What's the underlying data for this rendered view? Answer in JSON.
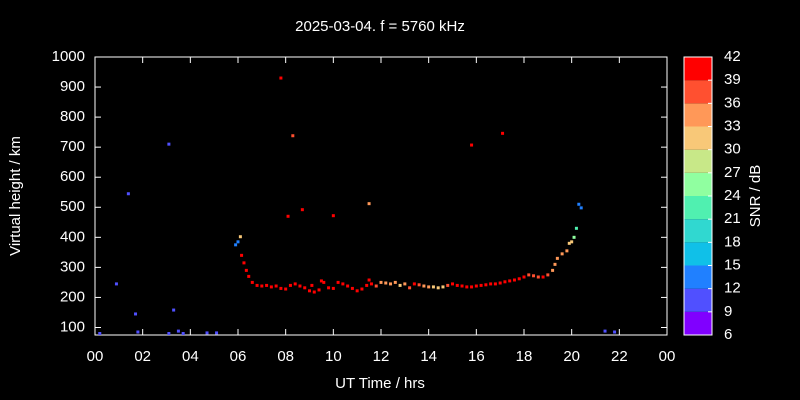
{
  "chart_data": {
    "type": "scatter",
    "title": "2025-03-04. f = 5760 kHz",
    "xlabel": "UT Time / hrs",
    "ylabel": "Virtual height / km",
    "clabel": "SNR / dB",
    "xlim": [
      0,
      24
    ],
    "xticks": [
      {
        "value": 0,
        "label": "00"
      },
      {
        "value": 2,
        "label": "02"
      },
      {
        "value": 4,
        "label": "04"
      },
      {
        "value": 6,
        "label": "06"
      },
      {
        "value": 8,
        "label": "08"
      },
      10,
      12,
      14,
      16,
      18,
      20,
      22,
      {
        "value": 24,
        "label": "00"
      }
    ],
    "ylim": [
      75,
      1000
    ],
    "yticks": [
      100,
      200,
      300,
      400,
      500,
      600,
      700,
      800,
      900,
      1000
    ],
    "clim": [
      6,
      42
    ],
    "cticks": [
      6,
      9,
      12,
      15,
      18,
      21,
      24,
      27,
      30,
      33,
      36,
      39,
      42
    ],
    "colors": [
      "#8000ff",
      "#5050ff",
      "#2080ff",
      "#10c0e8",
      "#30d8d0",
      "#50f0b0",
      "#90ffa0",
      "#c8e888",
      "#f8c878",
      "#ff9858",
      "#ff5030",
      "#ff0000"
    ],
    "x": [
      0.2,
      0.9,
      1.4,
      1.7,
      1.8,
      3.1,
      3.1,
      3.3,
      3.5,
      3.7,
      4.7,
      5.1,
      21.4,
      21.8,
      7.8,
      8.1,
      8.3,
      8.7,
      10.0,
      11.5,
      15.8,
      17.1,
      5.9,
      6.0,
      6.1,
      6.15,
      6.25,
      6.35,
      6.45,
      6.6,
      6.8,
      7.0,
      7.2,
      7.4,
      7.6,
      7.8,
      8.0,
      8.2,
      8.4,
      8.6,
      8.8,
      9.0,
      9.1,
      9.2,
      9.4,
      9.5,
      9.6,
      9.8,
      10.0,
      10.2,
      10.4,
      10.6,
      10.8,
      11.0,
      11.2,
      11.4,
      11.5,
      11.6,
      11.8,
      12.0,
      12.2,
      12.4,
      12.6,
      12.8,
      13.0,
      13.2,
      13.4,
      13.6,
      13.8,
      14.0,
      14.2,
      14.4,
      14.6,
      14.8,
      15.0,
      15.2,
      15.4,
      15.6,
      15.8,
      16.0,
      16.2,
      16.4,
      16.6,
      16.8,
      17.0,
      17.2,
      17.4,
      17.6,
      17.8,
      18.0,
      18.2,
      18.4,
      18.6,
      18.8,
      19.0,
      19.2,
      19.3,
      19.4,
      19.6,
      19.8,
      19.9,
      20.0,
      20.1,
      20.2,
      20.3,
      20.4
    ],
    "y": [
      80,
      245,
      545,
      145,
      85,
      710,
      80,
      158,
      88,
      80,
      82,
      82,
      88,
      85,
      930,
      470,
      738,
      492,
      472,
      512,
      707,
      746,
      375,
      385,
      402,
      340,
      315,
      290,
      270,
      250,
      240,
      238,
      240,
      235,
      238,
      230,
      228,
      240,
      245,
      238,
      232,
      222,
      240,
      218,
      225,
      255,
      250,
      232,
      230,
      250,
      245,
      238,
      230,
      222,
      228,
      240,
      258,
      245,
      238,
      250,
      248,
      245,
      250,
      240,
      245,
      232,
      245,
      242,
      238,
      235,
      235,
      232,
      235,
      240,
      245,
      240,
      238,
      235,
      235,
      238,
      240,
      242,
      245,
      245,
      248,
      252,
      255,
      258,
      262,
      268,
      275,
      272,
      268,
      268,
      275,
      290,
      310,
      330,
      345,
      355,
      380,
      385,
      400,
      430,
      510,
      498
    ],
    "snr": [
      9,
      9,
      9,
      9,
      9,
      9,
      9,
      9,
      9,
      9,
      9,
      9,
      9,
      9,
      39,
      39,
      36,
      39,
      39,
      33,
      39,
      39,
      12,
      12,
      30,
      39,
      39,
      39,
      39,
      42,
      42,
      42,
      42,
      42,
      42,
      42,
      42,
      42,
      42,
      42,
      42,
      42,
      42,
      42,
      42,
      39,
      42,
      42,
      42,
      42,
      42,
      42,
      42,
      42,
      42,
      42,
      39,
      42,
      36,
      33,
      33,
      33,
      33,
      30,
      33,
      36,
      39,
      36,
      33,
      33,
      30,
      30,
      30,
      36,
      39,
      42,
      42,
      42,
      42,
      42,
      42,
      42,
      42,
      42,
      42,
      42,
      42,
      39,
      39,
      39,
      36,
      36,
      36,
      39,
      36,
      33,
      33,
      33,
      33,
      33,
      30,
      30,
      24,
      21,
      12,
      12
    ]
  }
}
